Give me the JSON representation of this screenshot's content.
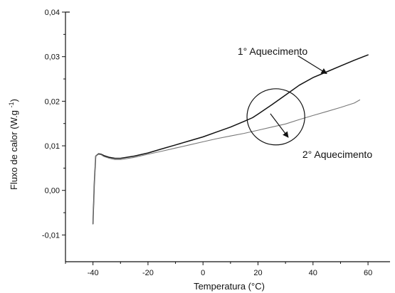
{
  "chart_data": {
    "type": "line",
    "title": "",
    "xlabel": "Temperatura (°C)",
    "ylabel": "Fluxo de calor (W.g⁻¹)",
    "xlim": [
      -50,
      68
    ],
    "ylim": [
      -0.016,
      0.04
    ],
    "x_ticks": [
      -40,
      -20,
      0,
      20,
      40,
      60
    ],
    "x_tick_labels": [
      "-40",
      "-20",
      "0",
      "20",
      "40",
      "60"
    ],
    "y_ticks": [
      -0.01,
      0.0,
      0.01,
      0.02,
      0.03,
      0.04
    ],
    "y_tick_labels": [
      "-0,01",
      "0,00",
      "0,01",
      "0,02",
      "0,03",
      "0,04"
    ],
    "grid": false,
    "legend": "none",
    "series": [
      {
        "name": "1° Aquecimento",
        "color": "#111111",
        "x": [
          -40,
          -39.5,
          -39,
          -38,
          -37,
          -36,
          -34,
          -32,
          -30,
          -25,
          -20,
          -15,
          -10,
          -5,
          0,
          5,
          10,
          15,
          18,
          20,
          25,
          30,
          35,
          40,
          45,
          50,
          55,
          60
        ],
        "y": [
          -0.0075,
          0.002,
          0.0077,
          0.0082,
          0.0081,
          0.0078,
          0.0074,
          0.0072,
          0.0072,
          0.0077,
          0.0084,
          0.0093,
          0.0102,
          0.0111,
          0.012,
          0.0131,
          0.0142,
          0.0155,
          0.0163,
          0.0171,
          0.0192,
          0.0214,
          0.0236,
          0.0253,
          0.0266,
          0.0279,
          0.0292,
          0.0304
        ]
      },
      {
        "name": "2° Aquecimento",
        "color": "#777777",
        "x": [
          -40,
          -39.5,
          -39,
          -38,
          -37,
          -36,
          -34,
          -32,
          -30,
          -25,
          -20,
          -15,
          -10,
          -5,
          0,
          5,
          10,
          15,
          20,
          25,
          30,
          35,
          40,
          45,
          50,
          55,
          57
        ],
        "y": [
          -0.0075,
          0.002,
          0.0077,
          0.0081,
          0.008,
          0.0076,
          0.0072,
          0.0069,
          0.0069,
          0.0074,
          0.0081,
          0.0088,
          0.0095,
          0.0102,
          0.0109,
          0.0116,
          0.0122,
          0.0128,
          0.0135,
          0.0142,
          0.0149,
          0.0159,
          0.0168,
          0.0177,
          0.0186,
          0.0196,
          0.0203
        ]
      }
    ],
    "annotations": {
      "first_heating_label": "1° Aquecimento",
      "second_heating_label": "2° Aquecimento",
      "first_heating_arrow": {
        "from": [
          45,
          0.0262
        ],
        "to": [
          34.5,
          0.0302
        ]
      },
      "second_heating_arrow": {
        "from": [
          24.5,
          0.0172
        ],
        "to": [
          31,
          0.0119
        ]
      },
      "highlight_circle": {
        "cx": 26.5,
        "cy": 0.0165,
        "rx": 10.5,
        "ry": 0.0063
      }
    }
  }
}
